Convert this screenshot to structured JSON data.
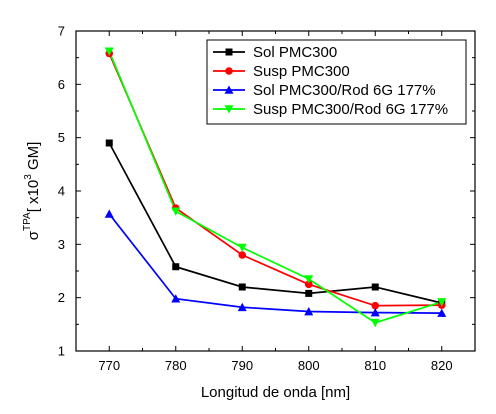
{
  "chart_data": {
    "type": "line",
    "title": "",
    "xlabel": "Longitud de onda [nm]",
    "ylabel": "σ^TPA [ x10^3 GM]",
    "ylabel_parts": {
      "symbol": "σ",
      "sup": "TPA",
      "open": "[ x10",
      "exp": "3",
      "close": " GM]"
    },
    "x": [
      770,
      780,
      790,
      800,
      810,
      820
    ],
    "x_ticks": [
      "770",
      "780",
      "790",
      "800",
      "810",
      "820"
    ],
    "y_ticks": [
      "1",
      "2",
      "3",
      "4",
      "5",
      "6",
      "7"
    ],
    "xlim": [
      765,
      825
    ],
    "ylim": [
      1,
      7
    ],
    "grid": false,
    "legend_position": "top-right",
    "series": [
      {
        "name": "Sol PMC300",
        "color": "#000000",
        "marker": "square",
        "values": [
          4.9,
          2.58,
          2.2,
          2.08,
          2.2,
          1.9
        ]
      },
      {
        "name": "Susp PMC300",
        "color": "#ff0000",
        "marker": "circle",
        "values": [
          6.58,
          3.68,
          2.8,
          2.25,
          1.85,
          1.86
        ]
      },
      {
        "name": "Sol PMC300/Rod 6G 177%",
        "color": "#0000ff",
        "marker": "triangle-up",
        "values": [
          3.57,
          1.98,
          1.82,
          1.74,
          1.72,
          1.71
        ]
      },
      {
        "name": "Susp PMC300/Rod 6G 177%",
        "color": "#00ff00",
        "marker": "triangle-down",
        "values": [
          6.62,
          3.62,
          2.94,
          2.35,
          1.53,
          1.92
        ]
      }
    ]
  }
}
